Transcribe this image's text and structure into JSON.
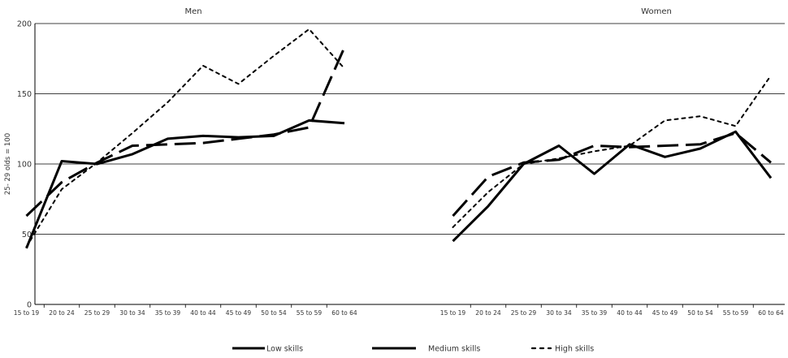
{
  "chart_data": {
    "type": "line",
    "ylabel": "25- 29 olds = 100",
    "ylim": [
      0,
      200
    ],
    "yticks": [
      0,
      50,
      100,
      150,
      200
    ],
    "grid": true,
    "legend_position": "bottom",
    "categories": [
      "15 to 19",
      "20 to 24",
      "25 to 29",
      "30 to 34",
      "35 to 39",
      "40 to 44",
      "45 to 49",
      "50 to 54",
      "55 to 59",
      "60 to 64"
    ],
    "panels": [
      {
        "title": "Men",
        "series": [
          {
            "name": "Low skills",
            "values": [
              40,
              102,
              100,
              107,
              118,
              120,
              119,
              120,
              131,
              129
            ]
          },
          {
            "name": "Medium skills",
            "values": [
              63,
              87,
              101,
              113,
              114,
              115,
              118,
              121,
              126,
              183
            ]
          },
          {
            "name": "High skills",
            "values": [
              41,
              82,
              101,
              122,
              144,
              170,
              157,
              177,
              196,
              168
            ]
          }
        ]
      },
      {
        "title": "Women",
        "series": [
          {
            "name": "Low skills",
            "values": [
              45,
              70,
              100,
              113,
              93,
              114,
              105,
              111,
              123,
              90
            ]
          },
          {
            "name": "Medium skills",
            "values": [
              63,
              91,
              101,
              103,
              113,
              112,
              113,
              114,
              122,
              101
            ]
          },
          {
            "name": "High skills",
            "values": [
              55,
              80,
              100,
              104,
              109,
              113,
              131,
              134,
              127,
              163
            ]
          }
        ]
      }
    ],
    "styles": {
      "Low skills": {
        "color": "#000000",
        "dash": "solid"
      },
      "Medium skills": {
        "color": "#000000",
        "dash": "long-dash"
      },
      "High skills": {
        "color": "#000000",
        "dash": "dotted"
      }
    }
  }
}
